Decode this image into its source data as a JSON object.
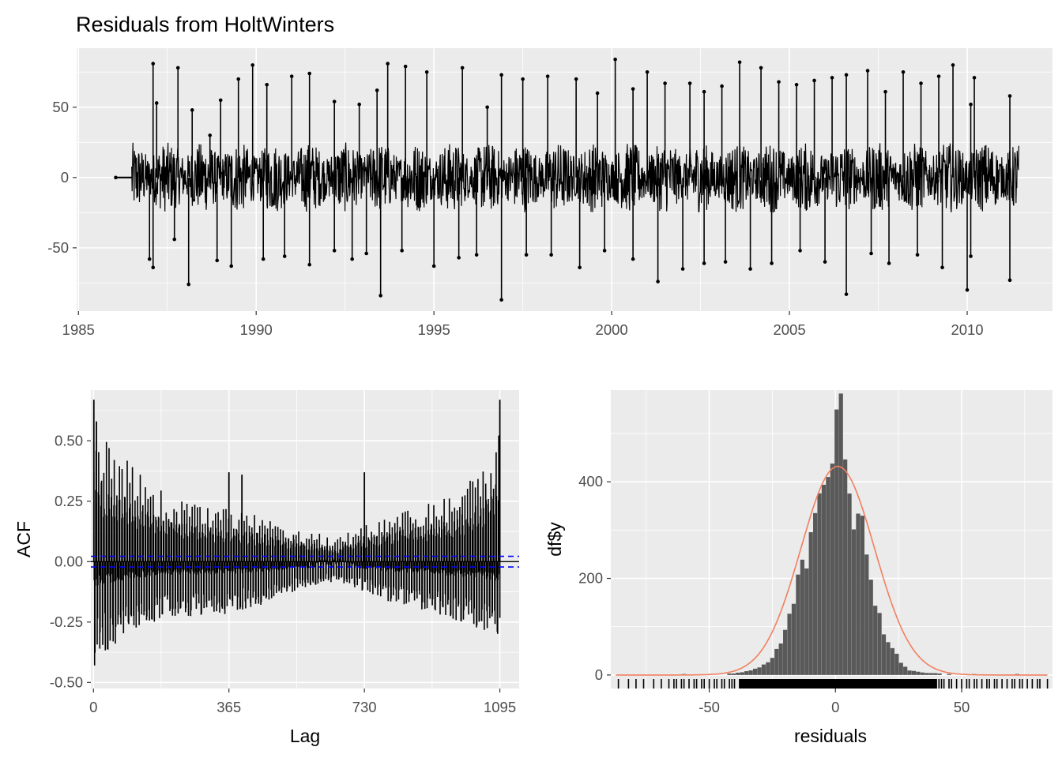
{
  "chart_data": [
    {
      "type": "line",
      "title": "Residuals from HoltWinters",
      "xlabel": "",
      "ylabel": "",
      "xlim": [
        1984.95,
        2012.4
      ],
      "ylim": [
        -95,
        92
      ],
      "x_ticks": [
        "1985",
        "1990",
        "1995",
        "2000",
        "2005",
        "2010"
      ],
      "y_ticks": [
        "50",
        "0",
        "-50"
      ],
      "series_color": "#000000",
      "series": [
        {
          "x_range": [
            1986.05,
            2011.45
          ],
          "flat_segment": {
            "x": [
              1986.05,
              1986.5
            ],
            "y": 0
          },
          "typical_band": [
            -25,
            25
          ],
          "spikes_up": [
            {
              "x": 1987.1,
              "y": 81
            },
            {
              "x": 1987.2,
              "y": 53
            },
            {
              "x": 1987.8,
              "y": 78
            },
            {
              "x": 1988.2,
              "y": 48
            },
            {
              "x": 1988.7,
              "y": 30
            },
            {
              "x": 1989.0,
              "y": 55
            },
            {
              "x": 1989.5,
              "y": 70
            },
            {
              "x": 1989.9,
              "y": 80
            },
            {
              "x": 1990.3,
              "y": 66
            },
            {
              "x": 1991.0,
              "y": 72
            },
            {
              "x": 1991.5,
              "y": 74
            },
            {
              "x": 1992.2,
              "y": 54
            },
            {
              "x": 1992.9,
              "y": 52
            },
            {
              "x": 1993.4,
              "y": 62
            },
            {
              "x": 1993.7,
              "y": 81
            },
            {
              "x": 1994.2,
              "y": 79
            },
            {
              "x": 1994.8,
              "y": 75
            },
            {
              "x": 1995.8,
              "y": 78
            },
            {
              "x": 1996.5,
              "y": 50
            },
            {
              "x": 1996.9,
              "y": 73
            },
            {
              "x": 1997.5,
              "y": 70
            },
            {
              "x": 1998.2,
              "y": 72
            },
            {
              "x": 1999.0,
              "y": 70
            },
            {
              "x": 1999.6,
              "y": 60
            },
            {
              "x": 2000.1,
              "y": 84
            },
            {
              "x": 2000.6,
              "y": 63
            },
            {
              "x": 2001.0,
              "y": 75
            },
            {
              "x": 2001.5,
              "y": 67
            },
            {
              "x": 2002.2,
              "y": 67
            },
            {
              "x": 2002.6,
              "y": 61
            },
            {
              "x": 2003.1,
              "y": 65
            },
            {
              "x": 2003.6,
              "y": 82
            },
            {
              "x": 2004.2,
              "y": 78
            },
            {
              "x": 2004.7,
              "y": 68
            },
            {
              "x": 2005.2,
              "y": 66
            },
            {
              "x": 2005.7,
              "y": 69
            },
            {
              "x": 2006.2,
              "y": 71
            },
            {
              "x": 2006.6,
              "y": 73
            },
            {
              "x": 2007.2,
              "y": 76
            },
            {
              "x": 2007.7,
              "y": 61
            },
            {
              "x": 2008.2,
              "y": 75
            },
            {
              "x": 2008.7,
              "y": 67
            },
            {
              "x": 2009.2,
              "y": 72
            },
            {
              "x": 2009.6,
              "y": 80
            },
            {
              "x": 2010.1,
              "y": 52
            },
            {
              "x": 2010.2,
              "y": 71
            },
            {
              "x": 2011.2,
              "y": 58
            }
          ],
          "spikes_down": [
            {
              "x": 1987.0,
              "y": -58
            },
            {
              "x": 1987.1,
              "y": -64
            },
            {
              "x": 1987.7,
              "y": -44
            },
            {
              "x": 1988.1,
              "y": -76
            },
            {
              "x": 1988.9,
              "y": -59
            },
            {
              "x": 1989.3,
              "y": -63
            },
            {
              "x": 1990.2,
              "y": -58
            },
            {
              "x": 1990.8,
              "y": -56
            },
            {
              "x": 1991.5,
              "y": -62
            },
            {
              "x": 1992.2,
              "y": -52
            },
            {
              "x": 1992.7,
              "y": -58
            },
            {
              "x": 1993.1,
              "y": -54
            },
            {
              "x": 1993.5,
              "y": -84
            },
            {
              "x": 1994.1,
              "y": -52
            },
            {
              "x": 1995.0,
              "y": -63
            },
            {
              "x": 1995.7,
              "y": -57
            },
            {
              "x": 1996.2,
              "y": -55
            },
            {
              "x": 1996.9,
              "y": -87
            },
            {
              "x": 1997.6,
              "y": -55
            },
            {
              "x": 1998.3,
              "y": -55
            },
            {
              "x": 1999.1,
              "y": -64
            },
            {
              "x": 1999.8,
              "y": -52
            },
            {
              "x": 2000.6,
              "y": -58
            },
            {
              "x": 2001.3,
              "y": -74
            },
            {
              "x": 2002.0,
              "y": -65
            },
            {
              "x": 2002.6,
              "y": -61
            },
            {
              "x": 2003.2,
              "y": -60
            },
            {
              "x": 2003.9,
              "y": -65
            },
            {
              "x": 2004.5,
              "y": -61
            },
            {
              "x": 2005.3,
              "y": -52
            },
            {
              "x": 2006.0,
              "y": -60
            },
            {
              "x": 2006.6,
              "y": -83
            },
            {
              "x": 2007.3,
              "y": -54
            },
            {
              "x": 2007.8,
              "y": -61
            },
            {
              "x": 2008.6,
              "y": -55
            },
            {
              "x": 2009.3,
              "y": -64
            },
            {
              "x": 2010.0,
              "y": -80
            },
            {
              "x": 2010.1,
              "y": -56
            },
            {
              "x": 2011.2,
              "y": -73
            }
          ]
        }
      ]
    },
    {
      "type": "bar",
      "title": "",
      "xlabel": "Lag",
      "ylabel": "ACF",
      "xlim": [
        -7,
        1147
      ],
      "ylim": [
        -0.525,
        0.71
      ],
      "x_ticks": [
        "0",
        "365",
        "730",
        "1095"
      ],
      "y_ticks": [
        "0.50",
        "0.25",
        "0.00",
        "-0.25",
        "-0.50"
      ],
      "confidence_band": [
        -0.022,
        0.022
      ],
      "confidence_color": "#0000ff",
      "envelope_positive": [
        [
          1,
          0.67
        ],
        [
          8,
          0.58
        ],
        [
          20,
          0.55
        ],
        [
          50,
          0.49
        ],
        [
          90,
          0.42
        ],
        [
          140,
          0.34
        ],
        [
          200,
          0.28
        ],
        [
          280,
          0.24
        ],
        [
          365,
          0.22
        ],
        [
          450,
          0.19
        ],
        [
          540,
          0.15
        ],
        [
          620,
          0.11
        ],
        [
          660,
          0.1
        ],
        [
          730,
          0.16
        ],
        [
          820,
          0.21
        ],
        [
          920,
          0.25
        ],
        [
          1000,
          0.32
        ],
        [
          1050,
          0.41
        ],
        [
          1080,
          0.47
        ],
        [
          1095,
          0.67
        ]
      ],
      "envelope_negative": [
        [
          1,
          -0.49
        ],
        [
          20,
          -0.43
        ],
        [
          60,
          -0.38
        ],
        [
          120,
          -0.3
        ],
        [
          200,
          -0.26
        ],
        [
          280,
          -0.25
        ],
        [
          365,
          -0.24
        ],
        [
          450,
          -0.2
        ],
        [
          540,
          -0.14
        ],
        [
          620,
          -0.1
        ],
        [
          660,
          -0.09
        ],
        [
          730,
          -0.14
        ],
        [
          820,
          -0.2
        ],
        [
          920,
          -0.24
        ],
        [
          1000,
          -0.29
        ],
        [
          1060,
          -0.33
        ],
        [
          1095,
          -0.37
        ]
      ],
      "notable_lags": [
        {
          "lag": 1,
          "value": 0.67
        },
        {
          "lag": 8,
          "value": 0.58
        },
        {
          "lag": 365,
          "value": 0.37
        },
        {
          "lag": 400,
          "value": 0.36
        },
        {
          "lag": 730,
          "value": 0.37
        },
        {
          "lag": 1095,
          "value": 0.67
        }
      ]
    },
    {
      "type": "bar",
      "title": "",
      "xlabel": "residuals",
      "ylabel": "df$y",
      "xlim": [
        -89,
        86
      ],
      "ylim": [
        -28,
        590
      ],
      "x_ticks": [
        "-50",
        "0",
        "50"
      ],
      "y_ticks": [
        "400",
        "200",
        "0"
      ],
      "bar_color": "#595959",
      "bin_width": 1.7,
      "bins": [
        {
          "x": -60,
          "count": 2
        },
        {
          "x": -40,
          "count": 3
        },
        {
          "x": -35,
          "count": 8
        },
        {
          "x": -30,
          "count": 15
        },
        {
          "x": -25,
          "count": 35
        },
        {
          "x": -22,
          "count": 60
        },
        {
          "x": -20,
          "count": 90
        },
        {
          "x": -18,
          "count": 125
        },
        {
          "x": -16,
          "count": 160
        },
        {
          "x": -14,
          "count": 200
        },
        {
          "x": -12,
          "count": 240
        },
        {
          "x": -10,
          "count": 270
        },
        {
          "x": -8,
          "count": 330
        },
        {
          "x": -6,
          "count": 370
        },
        {
          "x": -5,
          "count": 390
        },
        {
          "x": -4,
          "count": 420
        },
        {
          "x": -3,
          "count": 450
        },
        {
          "x": -2,
          "count": 470
        },
        {
          "x": -1,
          "count": 520
        },
        {
          "x": 0,
          "count": 565
        },
        {
          "x": 1,
          "count": 545
        },
        {
          "x": 2,
          "count": 530
        },
        {
          "x": 3,
          "count": 460
        },
        {
          "x": 4,
          "count": 420
        },
        {
          "x": 5,
          "count": 390
        },
        {
          "x": 6,
          "count": 370
        },
        {
          "x": 8,
          "count": 330
        },
        {
          "x": 10,
          "count": 300
        },
        {
          "x": 12,
          "count": 250
        },
        {
          "x": 14,
          "count": 195
        },
        {
          "x": 16,
          "count": 150
        },
        {
          "x": 18,
          "count": 120
        },
        {
          "x": 20,
          "count": 85
        },
        {
          "x": 22,
          "count": 60
        },
        {
          "x": 24,
          "count": 42
        },
        {
          "x": 26,
          "count": 28
        },
        {
          "x": 28,
          "count": 18
        },
        {
          "x": 30,
          "count": 10
        },
        {
          "x": 35,
          "count": 5
        },
        {
          "x": 45,
          "count": 2
        },
        {
          "x": 55,
          "count": 2
        },
        {
          "x": 72,
          "count": 2
        }
      ],
      "density_curve": {
        "color": "#f08060",
        "mean": 0.9,
        "sd": 14.6,
        "peak": 432,
        "x_range": [
          -87,
          84
        ]
      },
      "rug": {
        "color": "#000000",
        "dense_range": [
          -38,
          40
        ],
        "sparse_points": [
          -86,
          -82,
          -79,
          -76,
          -72,
          -69,
          -66,
          -64,
          -63,
          -61,
          -60,
          -58,
          -56,
          -55,
          -53,
          -52,
          -50,
          -48,
          -47,
          -45,
          -44,
          -42,
          -41,
          -40,
          41,
          42,
          43,
          45,
          46,
          48,
          50,
          52,
          53,
          55,
          56,
          58,
          60,
          61,
          63,
          64,
          66,
          68,
          70,
          71,
          73,
          74,
          76,
          78,
          80,
          81,
          84
        ]
      }
    }
  ]
}
